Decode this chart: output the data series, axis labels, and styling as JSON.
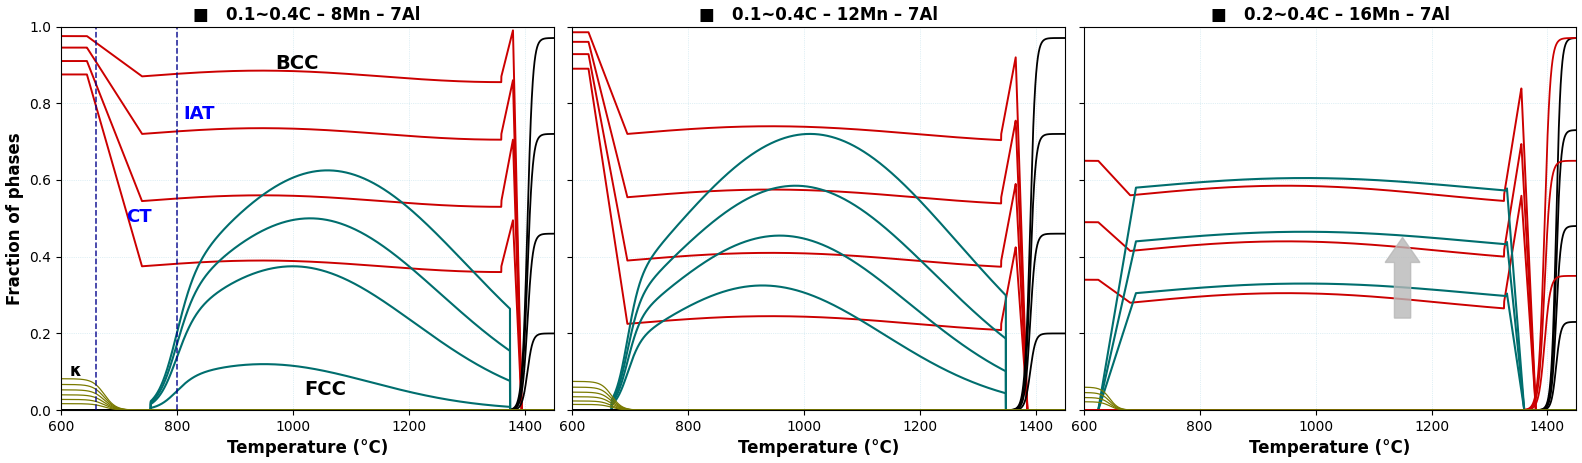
{
  "panels": [
    {
      "title": "0.1~0.4C – 8Mn – 7Al",
      "xlim": [
        600,
        1450
      ],
      "xticks": [
        600,
        800,
        1000,
        1200,
        1400
      ],
      "has_ylabel": true,
      "vlines": [
        660,
        800
      ]
    },
    {
      "title": "0.1~0.4C – 12Mn – 7Al",
      "xlim": [
        600,
        1450
      ],
      "xticks": [
        600,
        800,
        1000,
        1200,
        1400
      ],
      "has_ylabel": false,
      "vlines": []
    },
    {
      "title": "0.2~0.4C – 16Mn – 7Al",
      "xlim": [
        600,
        1450
      ],
      "xticks": [
        600,
        800,
        1000,
        1200,
        1400
      ],
      "has_ylabel": false,
      "vlines": []
    }
  ],
  "colors": {
    "red": "#cc0000",
    "teal": "#006e6e",
    "olive": "#7a7a00",
    "black": "#000000",
    "vline": "#00008B",
    "grid": "#b8dce8",
    "arrow": "#b8b8b8"
  },
  "ylim": [
    0.0,
    1.0
  ],
  "yticks": [
    0.0,
    0.2,
    0.4,
    0.6,
    0.8,
    1.0
  ],
  "ylabel": "Fraction of phases",
  "xlabel": "Temperature (°C)",
  "title_fontsize": 12,
  "label_fontsize": 12,
  "tick_fontsize": 10,
  "annot_fontsize": 14
}
